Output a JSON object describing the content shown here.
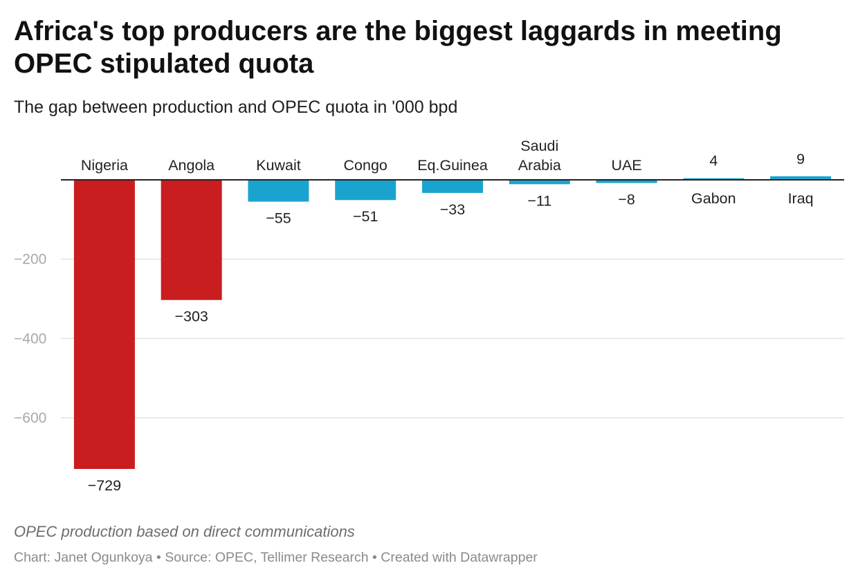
{
  "title": "Africa's top producers are the biggest laggards in meeting OPEC stipulated quota",
  "subtitle": "The gap between production and OPEC quota in '000 bpd",
  "chart_data": {
    "type": "bar",
    "title": "Africa's top producers are the biggest laggards in meeting OPEC stipulated quota",
    "subtitle": "The gap between production and OPEC quota in '000 bpd",
    "categories": [
      [
        "Nigeria"
      ],
      [
        "Angola"
      ],
      [
        "Kuwait"
      ],
      [
        "Congo"
      ],
      [
        "Eq.Guinea"
      ],
      [
        "Saudi",
        "Arabia"
      ],
      [
        "UAE"
      ],
      [
        "Gabon"
      ],
      [
        "Iraq"
      ]
    ],
    "values": [
      -729,
      -303,
      -55,
      -51,
      -33,
      -11,
      -8,
      4,
      9
    ],
    "value_labels": [
      "−729",
      "−303",
      "−55",
      "−51",
      "−33",
      "−11",
      "−8",
      "4",
      "9"
    ],
    "highlight": [
      true,
      true,
      false,
      false,
      false,
      false,
      false,
      false,
      false
    ],
    "colors": {
      "highlight": "#c91d1f",
      "default": "#1ba3d0",
      "grid": "#e2e2e2",
      "axis": "#222222"
    },
    "y_ticks": [
      -200,
      -400,
      -600
    ],
    "y_tick_labels": [
      "−200",
      "−400",
      "−600"
    ],
    "ylim": [
      -780,
      20
    ],
    "xlabel": "",
    "ylabel": "",
    "grid": true
  },
  "footer": {
    "note": "OPEC production based on direct communications",
    "credits": "Chart: Janet Ogunkoya • Source: OPEC, Tellimer Research • Created with Datawrapper"
  }
}
